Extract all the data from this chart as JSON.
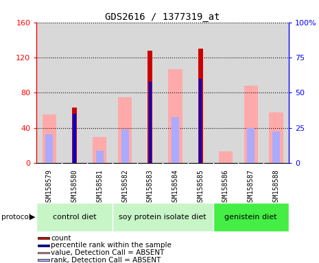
{
  "title": "GDS2616 / 1377319_at",
  "samples": [
    "GSM158579",
    "GSM158580",
    "GSM158581",
    "GSM158582",
    "GSM158583",
    "GSM158584",
    "GSM158585",
    "GSM158586",
    "GSM158587",
    "GSM158588"
  ],
  "count_values": [
    0,
    63,
    0,
    0,
    128,
    0,
    130,
    0,
    0,
    0
  ],
  "percentile_values": [
    0,
    35,
    0,
    0,
    58,
    0,
    60,
    0,
    0,
    0
  ],
  "value_absent": [
    55,
    0,
    30,
    75,
    0,
    107,
    0,
    13,
    88,
    58
  ],
  "rank_absent": [
    33,
    0,
    14,
    38,
    0,
    52,
    0,
    0,
    40,
    36
  ],
  "group_defs": [
    {
      "start": 0,
      "end": 3,
      "color": "#c8f5c8",
      "label": "control diet"
    },
    {
      "start": 3,
      "end": 7,
      "color": "#c8f5c8",
      "label": "soy protein isolate diet"
    },
    {
      "start": 7,
      "end": 10,
      "color": "#44ee44",
      "label": "genistein diet"
    }
  ],
  "ylim_left": [
    0,
    160
  ],
  "ylim_right": [
    0,
    100
  ],
  "yticks_left": [
    0,
    40,
    80,
    120,
    160
  ],
  "yticks_right": [
    0,
    25,
    50,
    75,
    100
  ],
  "count_color": "#cc0000",
  "percentile_color": "#0000cc",
  "value_absent_color": "#ffaaaa",
  "rank_absent_color": "#aaaaff",
  "col_bg": "#d8d8d8",
  "plot_bg": "#ffffff",
  "legend": [
    {
      "color": "#cc0000",
      "label": "count"
    },
    {
      "color": "#0000cc",
      "label": "percentile rank within the sample"
    },
    {
      "color": "#ffaaaa",
      "label": "value, Detection Call = ABSENT"
    },
    {
      "color": "#aaaaff",
      "label": "rank, Detection Call = ABSENT"
    }
  ]
}
